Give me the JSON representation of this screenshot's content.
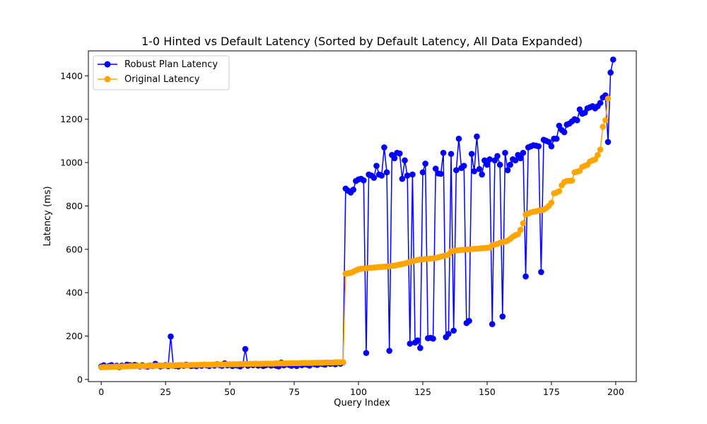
{
  "chart_data": {
    "type": "line",
    "title": "1-0 Hinted vs Default Latency (Sorted by Default Latency, All Data Expanded)",
    "xlabel": "Query Index",
    "ylabel": "Latency (ms)",
    "xlim": [
      -5,
      208
    ],
    "ylim": [
      -10,
      1515
    ],
    "xticks": [
      0,
      25,
      50,
      75,
      100,
      125,
      150,
      175,
      200
    ],
    "yticks": [
      0,
      200,
      400,
      600,
      800,
      1000,
      1200,
      1400
    ],
    "grid": false,
    "legend": "top-left",
    "series": [
      {
        "name": "Robust Plan Latency",
        "color": "#0000ff",
        "values": [
          60,
          65,
          58,
          62,
          66,
          60,
          63,
          57,
          64,
          61,
          68,
          66,
          62,
          67,
          63,
          60,
          65,
          61,
          59,
          64,
          62,
          72,
          65,
          60,
          63,
          66,
          61,
          198,
          64,
          62,
          60,
          66,
          63,
          68,
          65,
          62,
          64,
          61,
          66,
          63,
          68,
          65,
          62,
          67,
          64,
          70,
          66,
          63,
          74,
          65,
          68,
          62,
          66,
          64,
          60,
          67,
          140,
          63,
          70,
          66,
          72,
          64,
          68,
          62,
          66,
          70,
          64,
          67,
          63,
          60,
          78,
          65,
          70,
          67,
          63,
          69,
          62,
          72,
          66,
          70,
          68,
          64,
          75,
          70,
          67,
          73,
          71,
          68,
          76,
          72,
          74,
          70,
          77,
          73,
          79,
          880,
          870,
          862,
          875,
          915,
          922,
          925,
          918,
          122,
          945,
          940,
          930,
          985,
          945,
          940,
          1070,
          955,
          132,
          1035,
          1020,
          1045,
          1042,
          925,
          1010,
          940,
          165,
          945,
          170,
          180,
          145,
          955,
          995,
          190,
          192,
          188,
          972,
          950,
          948,
          1045,
          195,
          210,
          1040,
          225,
          965,
          1110,
          975,
          985,
          260,
          270,
          1040,
          960,
          1120,
          970,
          945,
          1010,
          990,
          1015,
          255,
          1010,
          1030,
          990,
          290,
          1045,
          965,
          990,
          1015,
          1010,
          1035,
          1020,
          1045,
          475,
          1070,
          1075,
          1080,
          1078,
          1075,
          495,
          1105,
          1100,
          1095,
          1075,
          1110,
          1110,
          1170,
          1150,
          1140,
          1175,
          1180,
          1190,
          1200,
          1195,
          1245,
          1225,
          1230,
          1250,
          1255,
          1260,
          1250,
          1260,
          1275,
          1300,
          1310,
          1095,
          1415,
          1475
        ]
      },
      {
        "name": "Original Latency",
        "color": "#ffa500",
        "values": [
          56,
          57,
          57,
          58,
          58,
          59,
          59,
          59,
          60,
          60,
          60,
          61,
          61,
          61,
          62,
          62,
          62,
          62,
          63,
          63,
          63,
          63,
          64,
          64,
          64,
          64,
          65,
          65,
          65,
          65,
          66,
          66,
          66,
          66,
          66,
          67,
          67,
          67,
          67,
          68,
          68,
          68,
          68,
          68,
          69,
          69,
          69,
          69,
          69,
          70,
          70,
          70,
          70,
          70,
          71,
          71,
          71,
          71,
          72,
          72,
          72,
          72,
          72,
          73,
          73,
          73,
          73,
          73,
          74,
          74,
          74,
          74,
          74,
          75,
          75,
          75,
          75,
          75,
          76,
          76,
          76,
          76,
          76,
          77,
          77,
          77,
          77,
          78,
          78,
          78,
          78,
          79,
          79,
          79,
          80,
          488,
          490,
          492,
          497,
          503,
          508,
          510,
          511,
          513,
          514,
          515,
          516,
          517,
          518,
          519,
          520,
          521,
          522,
          524,
          525,
          527,
          530,
          532,
          535,
          538,
          542,
          545,
          548,
          551,
          553,
          554,
          555,
          556,
          557,
          558,
          560,
          563,
          566,
          569,
          572,
          576,
          590,
          594,
          595,
          596,
          597,
          598,
          599,
          600,
          601,
          602,
          603,
          604,
          605,
          606,
          607,
          608,
          620,
          622,
          625,
          630,
          633,
          636,
          640,
          648,
          658,
          665,
          670,
          690,
          720,
          760,
          765,
          770,
          773,
          775,
          778,
          780,
          783,
          790,
          800,
          815,
          858,
          862,
          868,
          895,
          910,
          915,
          916,
          917,
          955,
          958,
          962,
          980,
          985,
          990,
          1005,
          1010,
          1015,
          1035,
          1060,
          1165,
          1195,
          1295
        ]
      }
    ]
  }
}
